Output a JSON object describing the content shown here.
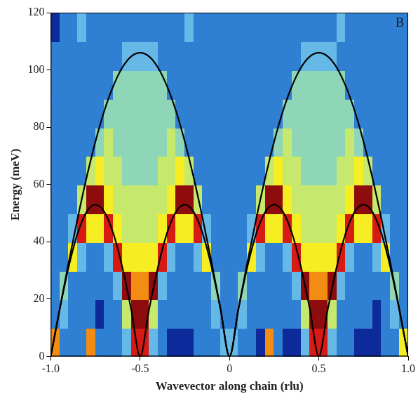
{
  "chart_data": {
    "type": "heatmap",
    "x_label": "Wavevector along chain (rlu)",
    "y_label": "Energy (meV)",
    "panel_label": "B",
    "xlim": [
      -1,
      1
    ],
    "xticks": [
      {
        "value": -1,
        "label": "-1.0"
      },
      -0.5,
      0,
      0.5,
      {
        "value": 1,
        "label": "1.0"
      }
    ],
    "ylim": [
      0,
      120
    ],
    "yticks": [
      0,
      20,
      40,
      60,
      80,
      100,
      120
    ],
    "grid": false,
    "heatmap": {
      "x_bins": [
        -1,
        -0.95,
        -0.9,
        -0.85,
        -0.8,
        -0.75,
        -0.7,
        -0.65,
        -0.6,
        -0.55,
        -0.5,
        -0.45,
        -0.4,
        -0.35,
        -0.3,
        -0.25,
        -0.2,
        -0.15,
        -0.1,
        -0.05,
        0,
        0.05,
        0.1,
        0.15,
        0.2,
        0.25,
        0.3,
        0.35,
        0.4,
        0.45,
        0.5,
        0.55,
        0.6,
        0.65,
        0.7,
        0.75,
        0.8,
        0.85,
        0.9,
        0.95,
        1
      ],
      "y_bins": [
        0,
        10,
        20,
        30,
        40,
        50,
        60,
        70,
        80,
        90,
        100,
        110,
        120
      ],
      "cells": [
        [
          7,
          2,
          2,
          2,
          7,
          2,
          2,
          2,
          3,
          8,
          8,
          3,
          2,
          1,
          1,
          1,
          2,
          2,
          2,
          3,
          3,
          2,
          2,
          1,
          7,
          2,
          1,
          1,
          3,
          8,
          8,
          3,
          2,
          2,
          1,
          1,
          1,
          2,
          2,
          6
        ],
        [
          2,
          3,
          2,
          2,
          2,
          1,
          2,
          2,
          5,
          9,
          9,
          5,
          2,
          2,
          2,
          2,
          2,
          2,
          3,
          2,
          2,
          3,
          2,
          2,
          2,
          2,
          2,
          2,
          5,
          9,
          9,
          5,
          2,
          2,
          2,
          2,
          1,
          2,
          3,
          2
        ],
        [
          2,
          4,
          2,
          2,
          2,
          2,
          2,
          3,
          9,
          7,
          7,
          9,
          3,
          2,
          2,
          2,
          2,
          2,
          4,
          2,
          2,
          4,
          2,
          2,
          2,
          2,
          2,
          3,
          9,
          7,
          7,
          9,
          3,
          2,
          2,
          2,
          2,
          2,
          4,
          2
        ],
        [
          2,
          2,
          6,
          3,
          2,
          2,
          3,
          8,
          6,
          6,
          6,
          6,
          8,
          3,
          2,
          2,
          3,
          6,
          2,
          2,
          2,
          2,
          6,
          3,
          2,
          2,
          3,
          8,
          6,
          6,
          6,
          6,
          8,
          3,
          2,
          2,
          3,
          6,
          2,
          2
        ],
        [
          2,
          2,
          3,
          8,
          6,
          6,
          8,
          6,
          5,
          5,
          5,
          5,
          6,
          8,
          6,
          6,
          8,
          3,
          2,
          2,
          2,
          2,
          3,
          8,
          6,
          6,
          8,
          6,
          5,
          5,
          5,
          5,
          6,
          8,
          6,
          6,
          8,
          3,
          2,
          2
        ],
        [
          2,
          2,
          2,
          5,
          9,
          9,
          6,
          5,
          5,
          5,
          5,
          5,
          5,
          6,
          9,
          9,
          5,
          2,
          2,
          2,
          2,
          2,
          2,
          5,
          9,
          9,
          6,
          5,
          5,
          5,
          5,
          5,
          5,
          6,
          9,
          9,
          5,
          2,
          2,
          2
        ],
        [
          2,
          2,
          2,
          2,
          5,
          6,
          5,
          5,
          4,
          4,
          4,
          4,
          5,
          5,
          6,
          5,
          2,
          2,
          2,
          2,
          2,
          2,
          2,
          2,
          5,
          6,
          5,
          5,
          4,
          4,
          4,
          4,
          5,
          5,
          6,
          5,
          2,
          2,
          2,
          2
        ],
        [
          2,
          2,
          2,
          2,
          2,
          4,
          5,
          4,
          4,
          4,
          4,
          4,
          4,
          5,
          4,
          2,
          2,
          2,
          2,
          2,
          2,
          2,
          2,
          2,
          2,
          4,
          5,
          4,
          4,
          4,
          4,
          4,
          4,
          5,
          4,
          2,
          2,
          2,
          2,
          2
        ],
        [
          2,
          2,
          2,
          2,
          2,
          2,
          4,
          4,
          4,
          4,
          4,
          4,
          4,
          4,
          2,
          2,
          2,
          2,
          2,
          2,
          2,
          2,
          2,
          2,
          2,
          2,
          4,
          4,
          4,
          4,
          4,
          4,
          4,
          4,
          2,
          2,
          2,
          2,
          2,
          2
        ],
        [
          2,
          2,
          2,
          2,
          2,
          2,
          2,
          4,
          4,
          4,
          4,
          4,
          4,
          2,
          2,
          2,
          2,
          2,
          2,
          2,
          2,
          2,
          2,
          2,
          2,
          2,
          2,
          4,
          4,
          4,
          4,
          4,
          4,
          2,
          2,
          2,
          2,
          2,
          2,
          2
        ],
        [
          2,
          2,
          2,
          2,
          2,
          2,
          2,
          2,
          3,
          3,
          3,
          3,
          2,
          2,
          2,
          2,
          2,
          2,
          2,
          2,
          2,
          2,
          2,
          2,
          2,
          2,
          2,
          2,
          3,
          3,
          3,
          3,
          2,
          2,
          2,
          2,
          2,
          2,
          2,
          2
        ],
        [
          1,
          2,
          2,
          3,
          2,
          2,
          2,
          2,
          2,
          2,
          2,
          2,
          2,
          2,
          2,
          3,
          2,
          2,
          2,
          2,
          2,
          2,
          2,
          2,
          2,
          2,
          2,
          2,
          2,
          2,
          2,
          2,
          3,
          2,
          2,
          2,
          2,
          2,
          2,
          2
        ]
      ]
    },
    "series": [
      {
        "type": "line",
        "color": "#000000",
        "marker": "none",
        "line_style": "solid",
        "x": [
          -1,
          -0.95,
          -0.9,
          -0.85,
          -0.8,
          -0.75,
          -0.7,
          -0.65,
          -0.6,
          -0.55,
          -0.5,
          -0.45,
          -0.4,
          -0.35,
          -0.3,
          -0.25,
          -0.2,
          -0.15,
          -0.1,
          -0.05,
          0,
          0.05,
          0.1,
          0.15,
          0.2,
          0.25,
          0.3,
          0.35,
          0.4,
          0.45,
          0.5,
          0.55,
          0.6,
          0.65,
          0.7,
          0.75,
          0.8,
          0.85,
          0.9,
          0.95,
          1
        ],
        "values": [
          0,
          16.6,
          32.8,
          48.1,
          62.3,
          75,
          85.8,
          94.4,
          100.8,
          104.7,
          106,
          104.7,
          100.8,
          94.4,
          85.8,
          75,
          62.3,
          48.1,
          32.8,
          16.6,
          0,
          16.6,
          32.8,
          48.1,
          62.3,
          75,
          85.8,
          94.4,
          100.8,
          104.7,
          106,
          104.7,
          100.8,
          94.4,
          85.8,
          75,
          62.3,
          48.1,
          32.8,
          16.6,
          0
        ]
      },
      {
        "type": "line",
        "color": "#000000",
        "marker": "none",
        "line_style": "solid",
        "x": [
          -1,
          -0.95,
          -0.9,
          -0.85,
          -0.8,
          -0.75,
          -0.7,
          -0.65,
          -0.6,
          -0.55,
          -0.5,
          -0.45,
          -0.4,
          -0.35,
          -0.3,
          -0.25,
          -0.2,
          -0.15,
          -0.1,
          -0.05,
          0,
          0.05,
          0.1,
          0.15,
          0.2,
          0.25,
          0.3,
          0.35,
          0.4,
          0.45,
          0.5,
          0.55,
          0.6,
          0.65,
          0.7,
          0.75,
          0.8,
          0.85,
          0.9,
          0.95,
          1
        ],
        "values": [
          0,
          16.4,
          31.2,
          42.9,
          50.4,
          53,
          50.4,
          42.9,
          31.2,
          16.4,
          0,
          16.4,
          31.2,
          42.9,
          50.4,
          53,
          50.4,
          42.9,
          31.2,
          16.4,
          0,
          16.4,
          31.2,
          42.9,
          50.4,
          53,
          50.4,
          42.9,
          31.2,
          16.4,
          0,
          16.4,
          31.2,
          42.9,
          50.4,
          53,
          50.4,
          42.9,
          31.2,
          16.4,
          0
        ]
      }
    ]
  }
}
